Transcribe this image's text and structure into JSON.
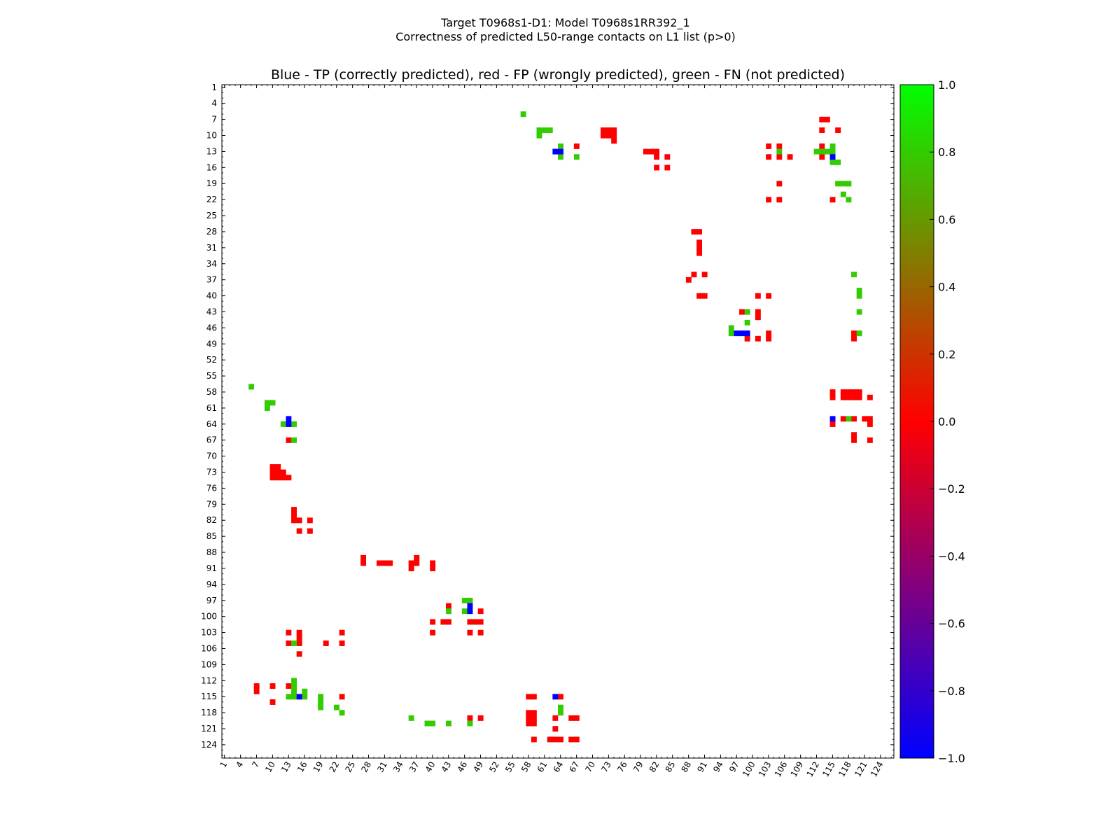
{
  "chart_data": {
    "type": "heatmap",
    "suptitle_line1": "Target T0968s1-D1: Model T0968s1RR392_1",
    "suptitle_line2": "Correctness of predicted L50-range contacts on L1 list (p>0)",
    "title": "Blue - TP (correctly predicted), red - FP (wrongly predicted), green - FN (not predicted)",
    "x_ticks": [
      "1",
      "4",
      "7",
      "10",
      "13",
      "16",
      "19",
      "22",
      "25",
      "28",
      "31",
      "34",
      "37",
      "40",
      "43",
      "46",
      "49",
      "52",
      "55",
      "58",
      "61",
      "64",
      "67",
      "70",
      "73",
      "76",
      "79",
      "82",
      "85",
      "88",
      "91",
      "94",
      "97",
      "100",
      "103",
      "106",
      "109",
      "112",
      "115",
      "118",
      "121",
      "124"
    ],
    "y_ticks": [
      "1",
      "4",
      "7",
      "10",
      "13",
      "16",
      "19",
      "22",
      "25",
      "28",
      "31",
      "34",
      "37",
      "40",
      "43",
      "46",
      "49",
      "52",
      "55",
      "58",
      "61",
      "64",
      "67",
      "70",
      "73",
      "76",
      "79",
      "82",
      "85",
      "88",
      "91",
      "94",
      "97",
      "100",
      "103",
      "106",
      "109",
      "112",
      "115",
      "118",
      "121",
      "124"
    ],
    "range": [
      1,
      126
    ],
    "colorbar": {
      "min": -1.0,
      "max": 1.0,
      "ticks": [
        "−1.0",
        "−0.8",
        "−0.6",
        "−0.4",
        "−0.2",
        "0.0",
        "0.2",
        "0.4",
        "0.6",
        "0.8",
        "1.0"
      ],
      "colors": [
        "#0000ff",
        "#ff0000",
        "#00ff00"
      ]
    },
    "colors": {
      "TP": "#0000ff",
      "FP": "#ff0000",
      "FN": "#33cc00"
    },
    "cells": {
      "FP": [
        [
          72,
          9
        ],
        [
          73,
          9
        ],
        [
          74,
          9
        ],
        [
          72,
          10
        ],
        [
          73,
          10
        ],
        [
          74,
          10
        ],
        [
          74,
          11
        ],
        [
          113,
          7
        ],
        [
          114,
          7
        ],
        [
          113,
          9
        ],
        [
          116,
          9
        ],
        [
          67,
          12
        ],
        [
          113,
          12
        ],
        [
          105,
          12
        ],
        [
          103,
          12
        ],
        [
          113,
          14
        ],
        [
          103,
          14
        ],
        [
          105,
          14
        ],
        [
          107,
          14
        ],
        [
          80,
          13
        ],
        [
          81,
          13
        ],
        [
          82,
          13
        ],
        [
          82,
          14
        ],
        [
          84,
          14
        ],
        [
          82,
          16
        ],
        [
          84,
          16
        ],
        [
          89,
          28
        ],
        [
          90,
          28
        ],
        [
          90,
          30
        ],
        [
          90,
          31
        ],
        [
          90,
          32
        ],
        [
          89,
          36
        ],
        [
          88,
          37
        ],
        [
          91,
          36
        ],
        [
          90,
          40
        ],
        [
          91,
          40
        ],
        [
          101,
          40
        ],
        [
          103,
          40
        ],
        [
          98,
          43
        ],
        [
          101,
          43
        ],
        [
          101,
          44
        ],
        [
          103,
          47
        ],
        [
          99,
          48
        ],
        [
          101,
          48
        ],
        [
          103,
          48
        ],
        [
          119,
          47
        ],
        [
          119,
          48
        ],
        [
          105,
          19
        ],
        [
          103,
          22
        ],
        [
          105,
          22
        ],
        [
          115,
          22
        ],
        [
          115,
          58
        ],
        [
          115,
          59
        ],
        [
          117,
          58
        ],
        [
          118,
          58
        ],
        [
          119,
          58
        ],
        [
          120,
          58
        ],
        [
          117,
          59
        ],
        [
          118,
          59
        ],
        [
          119,
          59
        ],
        [
          120,
          59
        ],
        [
          122,
          59
        ],
        [
          115,
          64
        ],
        [
          117,
          63
        ],
        [
          119,
          63
        ],
        [
          121,
          63
        ],
        [
          122,
          63
        ],
        [
          122,
          64
        ],
        [
          119,
          66
        ],
        [
          119,
          67
        ],
        [
          122,
          67
        ],
        [
          7,
          113
        ],
        [
          7,
          114
        ],
        [
          10,
          113
        ],
        [
          10,
          116
        ],
        [
          13,
          113
        ],
        [
          13,
          105
        ],
        [
          15,
          105
        ],
        [
          15,
          104
        ],
        [
          15,
          107
        ],
        [
          20,
          105
        ],
        [
          23,
          105
        ],
        [
          13,
          103
        ],
        [
          15,
          103
        ],
        [
          23,
          103
        ],
        [
          23,
          115
        ],
        [
          13,
          67
        ],
        [
          14,
          80
        ],
        [
          14,
          81
        ],
        [
          14,
          82
        ],
        [
          15,
          82
        ],
        [
          17,
          82
        ],
        [
          15,
          84
        ],
        [
          17,
          84
        ],
        [
          27,
          89
        ],
        [
          27,
          90
        ],
        [
          30,
          90
        ],
        [
          31,
          90
        ],
        [
          32,
          90
        ],
        [
          36,
          90
        ],
        [
          36,
          91
        ],
        [
          37,
          89
        ],
        [
          37,
          90
        ],
        [
          40,
          90
        ],
        [
          40,
          91
        ],
        [
          43,
          98
        ],
        [
          42,
          101
        ],
        [
          43,
          101
        ],
        [
          47,
          101
        ],
        [
          48,
          101
        ],
        [
          49,
          101
        ],
        [
          40,
          101
        ],
        [
          40,
          103
        ],
        [
          47,
          103
        ],
        [
          49,
          103
        ],
        [
          49,
          99
        ],
        [
          47,
          119
        ],
        [
          49,
          119
        ],
        [
          58,
          115
        ],
        [
          59,
          115
        ],
        [
          64,
          115
        ],
        [
          58,
          118
        ],
        [
          58,
          119
        ],
        [
          58,
          120
        ],
        [
          59,
          118
        ],
        [
          59,
          119
        ],
        [
          59,
          120
        ],
        [
          63,
          119
        ],
        [
          63,
          121
        ],
        [
          59,
          123
        ],
        [
          62,
          123
        ],
        [
          63,
          123
        ],
        [
          64,
          123
        ],
        [
          66,
          119
        ],
        [
          67,
          119
        ],
        [
          66,
          123
        ],
        [
          67,
          123
        ],
        [
          10,
          72
        ],
        [
          11,
          72
        ],
        [
          10,
          73
        ],
        [
          11,
          73
        ],
        [
          12,
          73
        ],
        [
          10,
          74
        ],
        [
          11,
          74
        ],
        [
          12,
          74
        ],
        [
          13,
          74
        ]
      ],
      "FN": [
        [
          57,
          6
        ],
        [
          60,
          9
        ],
        [
          61,
          9
        ],
        [
          62,
          9
        ],
        [
          60,
          10
        ],
        [
          64,
          12
        ],
        [
          64,
          14
        ],
        [
          67,
          14
        ],
        [
          105,
          13
        ],
        [
          115,
          12
        ],
        [
          112,
          13
        ],
        [
          113,
          13
        ],
        [
          114,
          13
        ],
        [
          115,
          13
        ],
        [
          115,
          15
        ],
        [
          116,
          15
        ],
        [
          116,
          19
        ],
        [
          117,
          19
        ],
        [
          118,
          19
        ],
        [
          117,
          21
        ],
        [
          118,
          22
        ],
        [
          119,
          36
        ],
        [
          120,
          39
        ],
        [
          120,
          40
        ],
        [
          120,
          43
        ],
        [
          99,
          43
        ],
        [
          99,
          45
        ],
        [
          96,
          46
        ],
        [
          96,
          47
        ],
        [
          120,
          47
        ],
        [
          118,
          63
        ],
        [
          6,
          57
        ],
        [
          9,
          60
        ],
        [
          10,
          60
        ],
        [
          9,
          61
        ],
        [
          12,
          64
        ],
        [
          14,
          64
        ],
        [
          14,
          67
        ],
        [
          14,
          112
        ],
        [
          14,
          113
        ],
        [
          14,
          114
        ],
        [
          13,
          115
        ],
        [
          14,
          115
        ],
        [
          16,
          114
        ],
        [
          16,
          115
        ],
        [
          19,
          115
        ],
        [
          19,
          116
        ],
        [
          19,
          117
        ],
        [
          22,
          117
        ],
        [
          23,
          118
        ],
        [
          46,
          97
        ],
        [
          47,
          97
        ],
        [
          43,
          99
        ],
        [
          46,
          99
        ],
        [
          36,
          119
        ],
        [
          39,
          120
        ],
        [
          40,
          120
        ],
        [
          43,
          120
        ],
        [
          47,
          120
        ],
        [
          64,
          117
        ],
        [
          64,
          118
        ],
        [
          14,
          105
        ]
      ],
      "TP": [
        [
          63,
          13
        ],
        [
          64,
          13
        ],
        [
          115,
          14
        ],
        [
          97,
          47
        ],
        [
          98,
          47
        ],
        [
          99,
          47
        ],
        [
          115,
          63
        ],
        [
          13,
          63
        ],
        [
          13,
          64
        ],
        [
          15,
          115
        ],
        [
          47,
          98
        ],
        [
          47,
          99
        ],
        [
          63,
          115
        ]
      ]
    }
  }
}
